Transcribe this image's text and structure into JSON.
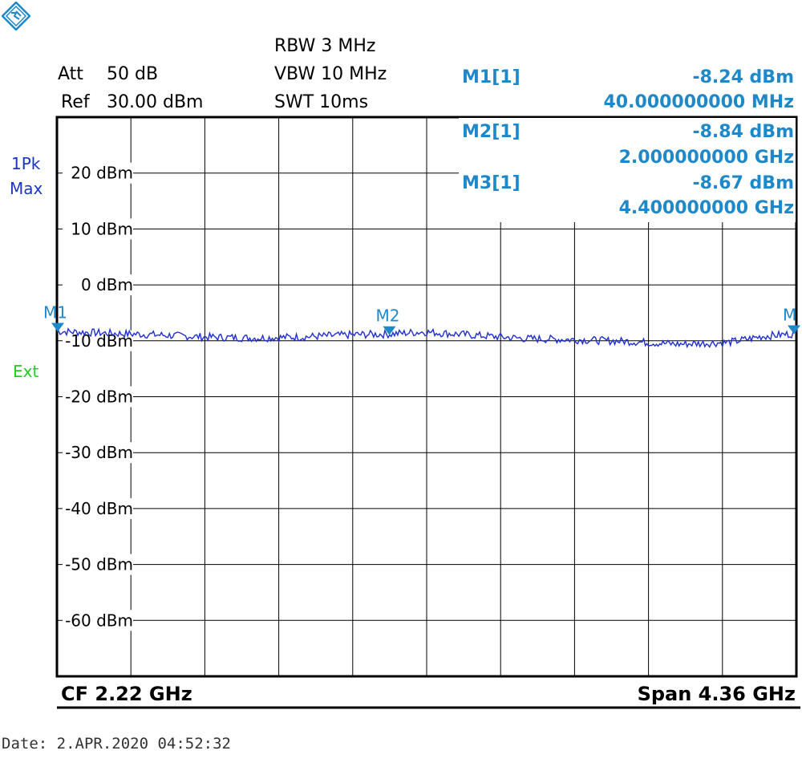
{
  "header": {
    "att_label": "Att",
    "att_value": "50 dB",
    "ref_label": "Ref",
    "ref_value": "30.00 dBm",
    "rbw": "RBW 3 MHz",
    "vbw": "VBW 10 MHz",
    "swt": "SWT 10ms"
  },
  "side": {
    "trace_mode_line1": "1Pk",
    "trace_mode_line2": "Max",
    "trigger": "Ext"
  },
  "markers": [
    {
      "label": "M1[1]",
      "level": "-8.24 dBm",
      "freq": "40.000000000 MHz",
      "tag": "M1"
    },
    {
      "label": "M2[1]",
      "level": "-8.84 dBm",
      "freq": "2.000000000 GHz",
      "tag": "M2"
    },
    {
      "label": "M3[1]",
      "level": "-8.67 dBm",
      "freq": "4.400000000 GHz",
      "tag": "M"
    }
  ],
  "footer": {
    "cf": "CF 2.22 GHz",
    "span": "Span 4.36 GHz",
    "date": "Date: 2.APR.2020  04:52:32"
  },
  "colors": {
    "trace": "#1f2fd0",
    "marker": "#1e88c8",
    "grid": "#000000",
    "ext": "#22cc22"
  },
  "chart_data": {
    "type": "line",
    "xlim_ghz": [
      0.04,
      4.4
    ],
    "ylim_dbm": [
      -70,
      30
    ],
    "y_ticks": [
      20,
      10,
      0,
      -10,
      -20,
      -30,
      -40,
      -50,
      -60
    ],
    "y_tick_labels": [
      "20 dBm",
      "10 dBm",
      "0 dBm",
      "-10 dBm",
      "-20 dBm",
      "-30 dBm",
      "-40 dBm",
      "-50 dBm",
      "-60 dBm"
    ],
    "grid": true,
    "series": [
      {
        "x": [
          0.04,
          0.3,
          0.6,
          0.9,
          1.2,
          1.5,
          1.8,
          2.0,
          2.2,
          2.5,
          2.8,
          3.1,
          3.4,
          3.7,
          4.0,
          4.2,
          4.4
        ],
        "y": [
          -8.3,
          -8.6,
          -8.9,
          -9.3,
          -9.5,
          -9.3,
          -8.9,
          -8.8,
          -8.4,
          -9.0,
          -9.6,
          -9.8,
          -10.1,
          -10.6,
          -10.3,
          -9.2,
          -8.7
        ]
      }
    ],
    "markers": [
      {
        "tag": "M1",
        "x": 0.04,
        "y": -8.24
      },
      {
        "tag": "M2",
        "x": 2.0,
        "y": -8.84
      },
      {
        "tag": "M",
        "x": 4.4,
        "y": -8.67
      }
    ]
  }
}
